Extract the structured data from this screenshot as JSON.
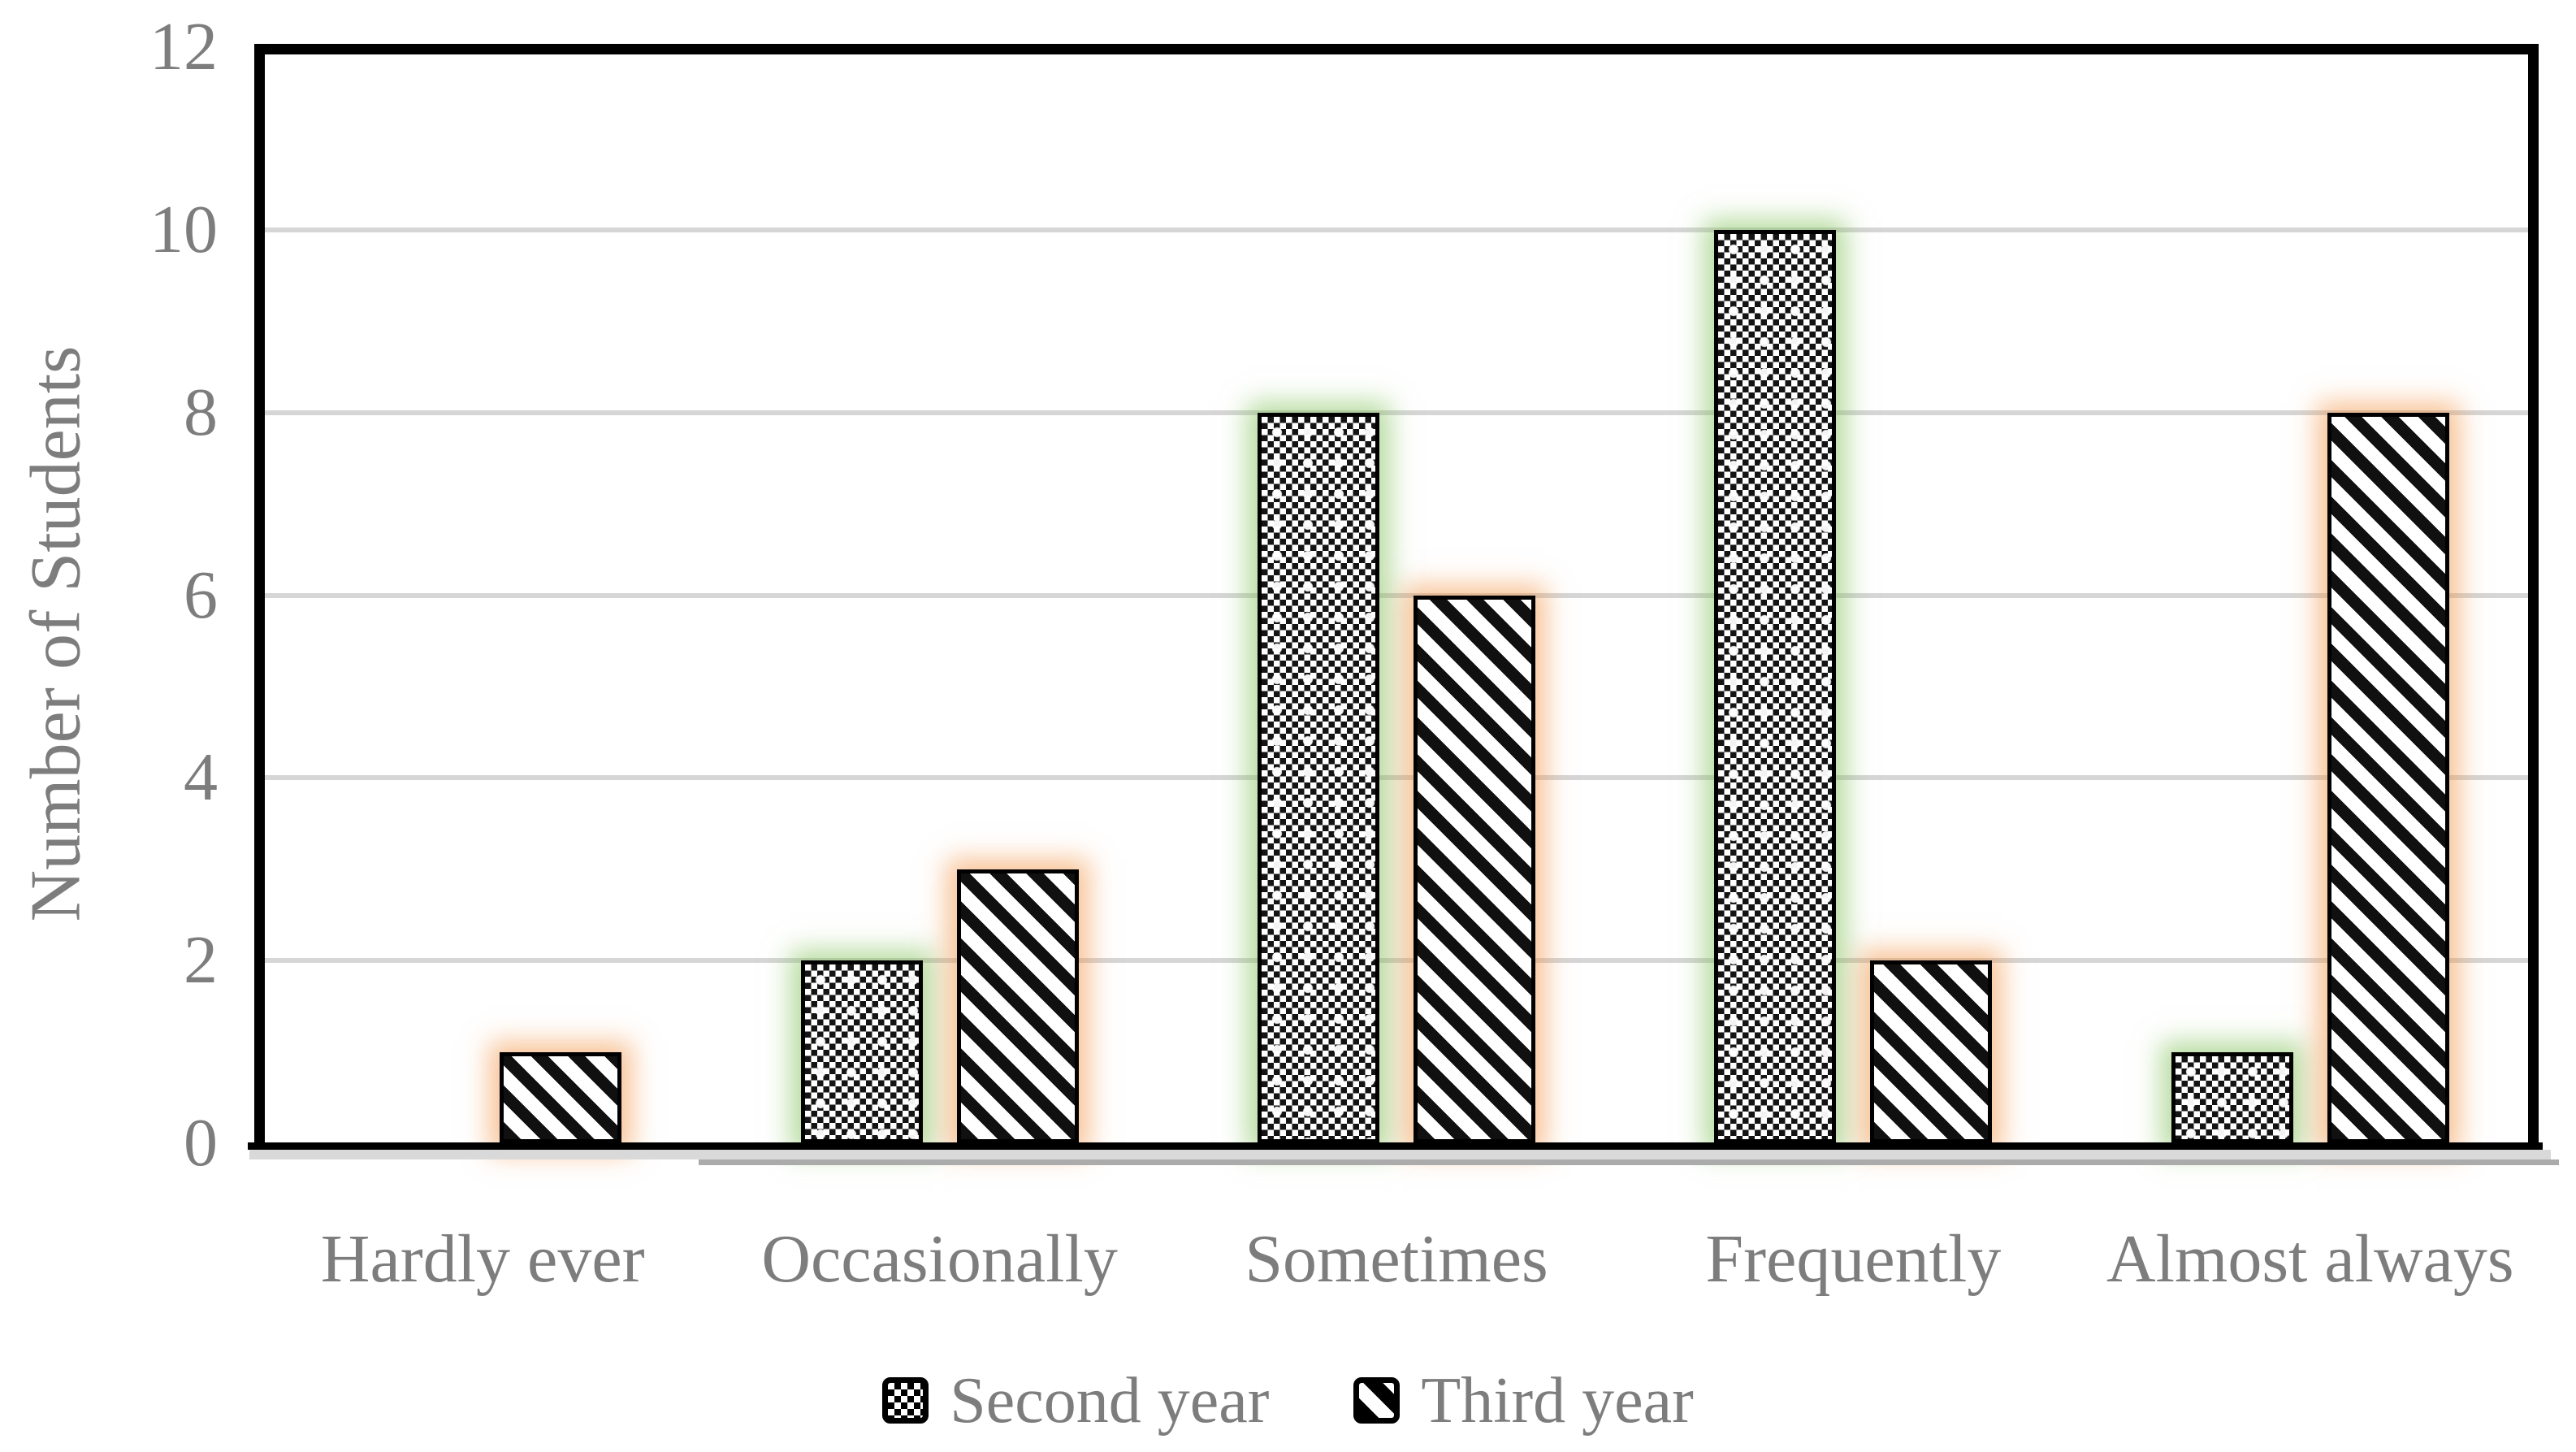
{
  "chart_data": {
    "type": "bar",
    "categories": [
      "Hardly ever",
      "Occasionally",
      "Sometimes",
      "Frequently",
      "Almost always"
    ],
    "series": [
      {
        "name": "Second year",
        "values": [
          0,
          2,
          8,
          10,
          1
        ],
        "pattern": "checker",
        "glow_color": "#7cbf52"
      },
      {
        "name": "Third year",
        "values": [
          1,
          3,
          6,
          2,
          8
        ],
        "pattern": "diagonal-stripe",
        "glow_color": "#f29141"
      }
    ],
    "title": "",
    "xlabel": "",
    "ylabel": "Number of Students",
    "ylim": [
      0,
      12
    ],
    "yticks": [
      0,
      2,
      4,
      6,
      8,
      10,
      12
    ],
    "gridlines": [
      2,
      4,
      6,
      8,
      10
    ],
    "grid": true,
    "legend_position": "bottom"
  },
  "colors": {
    "text": "#7d7d7d",
    "gridline": "#d6d6d6",
    "frame": "#000000",
    "bar_fill": "#ffffff",
    "bar_pattern": "#000000"
  }
}
